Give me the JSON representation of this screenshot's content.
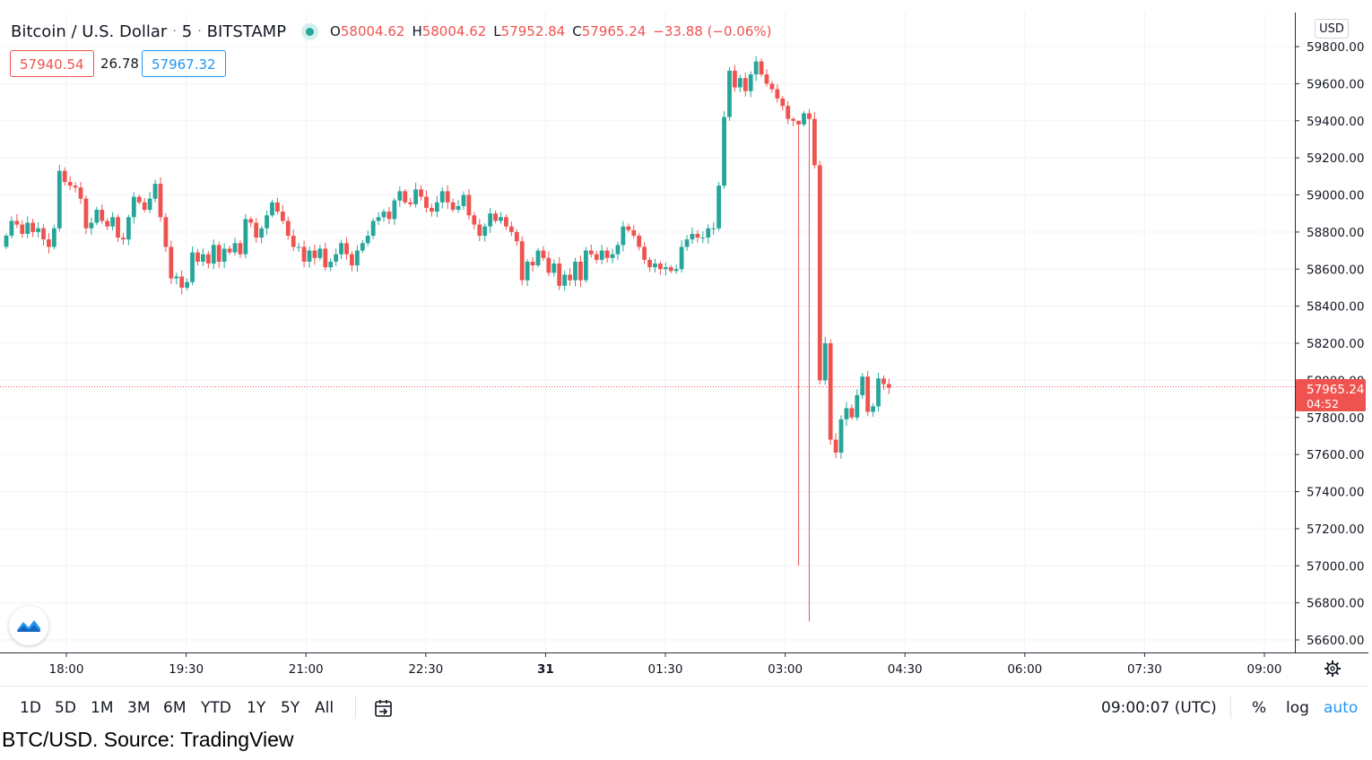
{
  "header": {
    "symbol": "Bitcoin / U.S. Dollar",
    "interval": "5",
    "exchange": "BITSTAMP",
    "sep": "·",
    "open_label": "O",
    "open": "58004.62",
    "high_label": "H",
    "high": "58004.62",
    "low_label": "L",
    "low": "57952.84",
    "close_label": "C",
    "close": "57965.24",
    "change": "−33.88 (−0.06%)"
  },
  "quote": {
    "bid": "57940.54",
    "spread": "26.78",
    "ask": "57967.32"
  },
  "price_scale": {
    "currency": "USD",
    "last_price": "57965.24",
    "countdown": "04:52"
  },
  "toolbar": {
    "ranges": [
      "1D",
      "5D",
      "1M",
      "3M",
      "6M",
      "YTD",
      "1Y",
      "5Y",
      "All"
    ],
    "clock": "09:00:07 (UTC)",
    "percent": "%",
    "log": "log",
    "auto": "auto"
  },
  "caption": "BTC/USD. Source: TradingView",
  "colors": {
    "up": "#26a69a",
    "down": "#ef5350",
    "grid": "#f0f3fa",
    "text": "#131722"
  },
  "icons": {
    "logo": "tradingview-logo-icon",
    "settings": "gear-icon",
    "goto_date": "calendar-goto-icon"
  },
  "chart_data": {
    "type": "candlestick",
    "ylim": [
      56550,
      59880
    ],
    "y_ticks": [
      59800,
      59600,
      59400,
      59200,
      59000,
      58800,
      58600,
      58400,
      58200,
      58000,
      57800,
      57600,
      57400,
      57200,
      57000,
      56800,
      56600
    ],
    "x_ticks": [
      "18:00",
      "19:30",
      "21:00",
      "22:30",
      "31",
      "01:30",
      "03:00",
      "04:30",
      "06:00",
      "07:30",
      "09:00"
    ],
    "last_price": 57965.24,
    "grid": true,
    "close": [
      58780,
      58860,
      58840,
      58790,
      58850,
      58800,
      58820,
      58760,
      58720,
      58820,
      59130,
      59070,
      59050,
      59040,
      58980,
      58820,
      58850,
      58920,
      58860,
      58830,
      58880,
      58770,
      58760,
      58880,
      58990,
      58960,
      58920,
      58980,
      59060,
      58880,
      58720,
      58550,
      58560,
      58500,
      58530,
      58690,
      58640,
      58680,
      58630,
      58730,
      58640,
      58710,
      58690,
      58740,
      58680,
      58870,
      58850,
      58770,
      58820,
      58890,
      58960,
      58910,
      58860,
      58780,
      58720,
      58720,
      58640,
      58700,
      58660,
      58710,
      58610,
      58640,
      58680,
      58740,
      58680,
      58620,
      58700,
      58740,
      58780,
      58860,
      58880,
      58910,
      58870,
      58970,
      59020,
      58960,
      58950,
      59030,
      58990,
      58930,
      58910,
      58960,
      59020,
      58960,
      58920,
      58940,
      59000,
      58890,
      58840,
      58780,
      58830,
      58900,
      58860,
      58880,
      58830,
      58800,
      58750,
      58540,
      58640,
      58620,
      58700,
      58660,
      58580,
      58630,
      58510,
      58570,
      58540,
      58640,
      58540,
      58700,
      58680,
      58650,
      58700,
      58660,
      58680,
      58730,
      58830,
      58810,
      58780,
      58720,
      58650,
      58610,
      58630,
      58600,
      58610,
      58590,
      58600,
      58720,
      58760,
      58790,
      58770,
      58770,
      58820,
      58820,
      59050,
      59420,
      59670,
      59580,
      59630,
      59560,
      59650,
      59720,
      59650,
      59600,
      59570,
      59520,
      59480,
      59410,
      59400,
      59380,
      59440,
      59410,
      59160,
      58000,
      58200,
      57680,
      57610,
      57790,
      57850,
      57800,
      57920,
      58020,
      57830,
      57860,
      58010,
      57980,
      57960
    ],
    "source": "Bitstamp via TradingView"
  }
}
